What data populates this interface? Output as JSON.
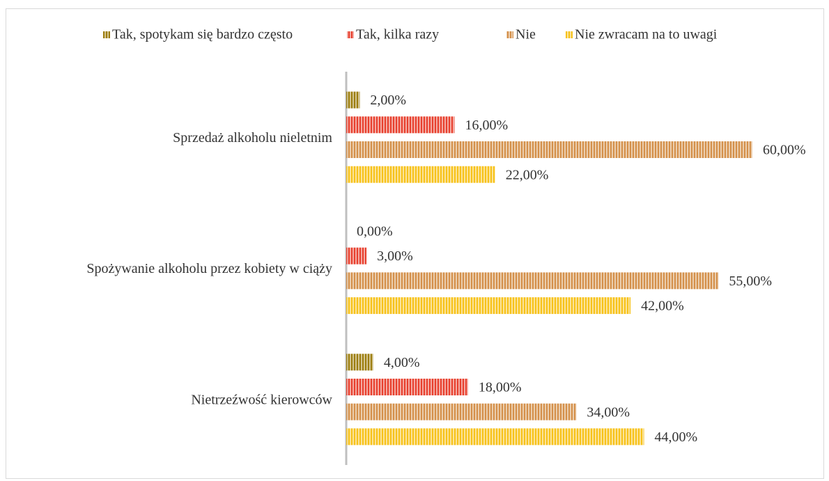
{
  "chart_data": {
    "type": "barh",
    "categories": [
      "Sprzedaż alkoholu nieletnim",
      "Spożywanie alkoholu przez kobiety w ciąży",
      "Nietrzeźwość kierowców"
    ],
    "series": [
      {
        "name": "Tak, spotykam się bardzo często",
        "color": "#9c7d0e",
        "values": [
          2,
          0,
          4
        ],
        "value_labels": [
          "2,00%",
          "0,00%",
          "4,00%"
        ]
      },
      {
        "name": "Tak, kilka razy",
        "color": "#e8402e",
        "values": [
          16,
          3,
          18
        ],
        "value_labels": [
          "16,00%",
          "3,00%",
          "18,00%"
        ]
      },
      {
        "name": "Nie",
        "color": "#d4904a",
        "values": [
          60,
          55,
          34
        ],
        "value_labels": [
          "60,00%",
          "55,00%",
          "34,00%"
        ]
      },
      {
        "name": "Nie zwracam na to uwagi",
        "color": "#f7c21a",
        "values": [
          22,
          42,
          44
        ],
        "value_labels": [
          "22,00%",
          "42,00%",
          "44,00%"
        ]
      }
    ],
    "legend": "top"
  }
}
